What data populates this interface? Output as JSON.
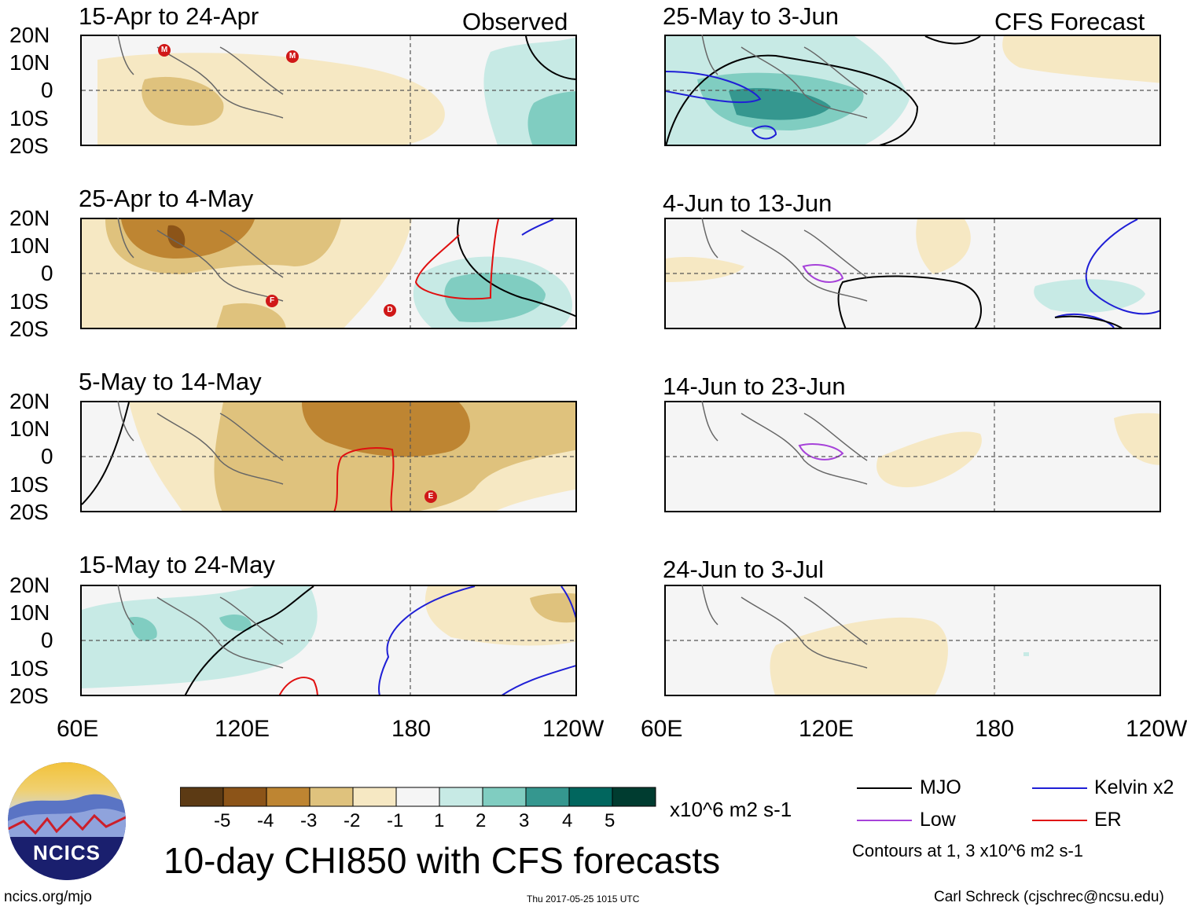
{
  "panels": [
    {
      "title": "15-Apr to 24-Apr",
      "tag": "Observed"
    },
    {
      "title": "25-Apr to 4-May",
      "tag": ""
    },
    {
      "title": "5-May to 14-May",
      "tag": ""
    },
    {
      "title": "15-May to 24-May",
      "tag": ""
    },
    {
      "title": "25-May to 3-Jun",
      "tag": "CFS Forecast"
    },
    {
      "title": "4-Jun to 13-Jun",
      "tag": ""
    },
    {
      "title": "14-Jun to 23-Jun",
      "tag": ""
    },
    {
      "title": "24-Jun to 3-Jul",
      "tag": ""
    }
  ],
  "chart_data": {
    "type": "heatmap",
    "title": "10-day CHI850 with CFS forecasts",
    "variable": "CHI850 anomaly",
    "units": "x10^6 m2 s-1",
    "lat_ticks": [
      "20N",
      "10N",
      "0",
      "10S",
      "20S"
    ],
    "lon_ticks": [
      "60E",
      "120E",
      "180",
      "120W"
    ],
    "lon_range": [
      "60E",
      "120W"
    ],
    "lat_range": [
      "20S",
      "20N"
    ],
    "colorbar": {
      "ticks": [
        "-5",
        "-4",
        "-3",
        "-2",
        "-1",
        "1",
        "2",
        "3",
        "4",
        "5"
      ],
      "colors": [
        "#5c3a14",
        "#8c5418",
        "#be8532",
        "#dfc27d",
        "#f6e8c3",
        "#f5f5f5",
        "#c7eae5",
        "#80cdc1",
        "#35978f",
        "#01665e",
        "#003c30"
      ]
    },
    "contour_note": "Contours at 1, 3 x10^6 m2 s-1",
    "legend": [
      {
        "name": "MJO",
        "color": "#000000"
      },
      {
        "name": "Kelvin x2",
        "color": "#1f1fd6"
      },
      {
        "name": "Low",
        "color": "#a642d9"
      },
      {
        "name": "ER",
        "color": "#e01010"
      }
    ],
    "storm_markers": [
      {
        "panel": 0,
        "label": "M"
      },
      {
        "panel": 0,
        "label": "M"
      },
      {
        "panel": 1,
        "label": "F"
      },
      {
        "panel": 1,
        "label": "D"
      },
      {
        "panel": 2,
        "label": "E"
      }
    ]
  },
  "logo": {
    "text": "NCICS"
  },
  "footer": {
    "url": "ncics.org/mjo",
    "timestamp": "Thu 2017-05-25 1015 UTC",
    "author": "Carl Schreck (cjschrec@ncsu.edu)"
  }
}
